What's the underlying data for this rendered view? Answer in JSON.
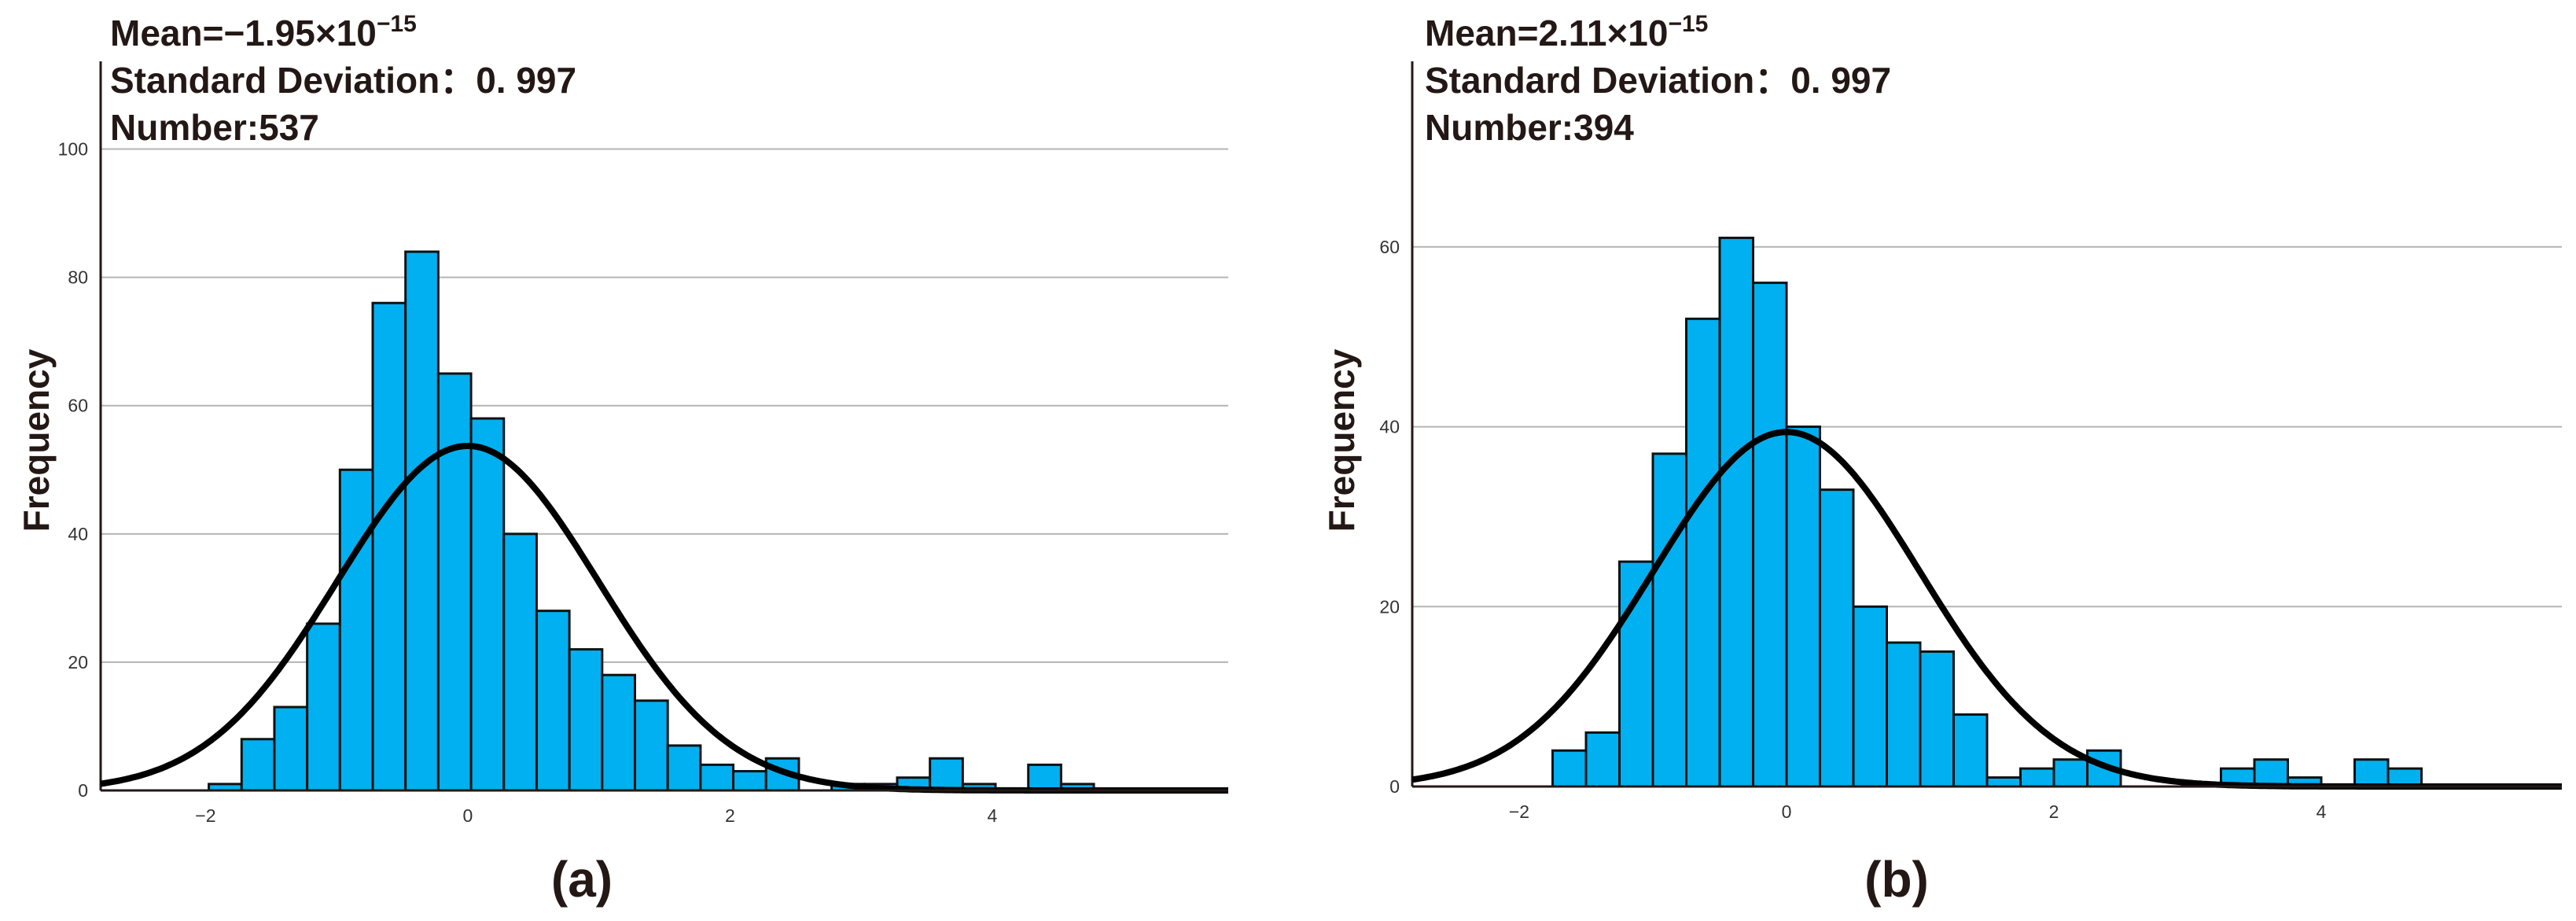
{
  "colors": {
    "bar": "#00B0F0",
    "curve": "#000000",
    "grid": "#B4B4B4"
  },
  "chart_data": [
    {
      "type": "bar",
      "panel_label": "(a)",
      "stats": {
        "mean_label": "Mean=−1.95×10",
        "mean_exponent": "−15",
        "sd_label": "Standard Deviation：0. 997",
        "number_label": "Number:537"
      },
      "ylabel": "Frequency",
      "xlabel": "",
      "xlim": [
        -2.8,
        5.8
      ],
      "ylim": [
        0,
        110
      ],
      "xticks": [
        -2,
        0,
        2,
        4
      ],
      "xtick_labels": [
        "−2",
        "0",
        "2",
        "4"
      ],
      "yticks": [
        0,
        20,
        40,
        60,
        80,
        100
      ],
      "ytick_labels": [
        "0",
        "20",
        "40",
        "60",
        "80",
        "100"
      ],
      "grid": true,
      "normal_curve": {
        "mean": 0,
        "sd": 0.997,
        "n": 537,
        "bin_width": 0.25
      },
      "bins": [
        {
          "x0": -1.975,
          "x1": -1.725,
          "count": 1
        },
        {
          "x0": -1.725,
          "x1": -1.475,
          "count": 8
        },
        {
          "x0": -1.475,
          "x1": -1.225,
          "count": 13
        },
        {
          "x0": -1.225,
          "x1": -0.975,
          "count": 26
        },
        {
          "x0": -0.975,
          "x1": -0.725,
          "count": 50
        },
        {
          "x0": -0.725,
          "x1": -0.475,
          "count": 76
        },
        {
          "x0": -0.475,
          "x1": -0.225,
          "count": 84
        },
        {
          "x0": -0.225,
          "x1": 0.025,
          "count": 65
        },
        {
          "x0": 0.025,
          "x1": 0.275,
          "count": 58
        },
        {
          "x0": 0.275,
          "x1": 0.525,
          "count": 40
        },
        {
          "x0": 0.525,
          "x1": 0.775,
          "count": 28
        },
        {
          "x0": 0.775,
          "x1": 1.025,
          "count": 22
        },
        {
          "x0": 1.025,
          "x1": 1.275,
          "count": 18
        },
        {
          "x0": 1.275,
          "x1": 1.525,
          "count": 14
        },
        {
          "x0": 1.525,
          "x1": 1.775,
          "count": 7
        },
        {
          "x0": 1.775,
          "x1": 2.025,
          "count": 4
        },
        {
          "x0": 2.025,
          "x1": 2.275,
          "count": 3
        },
        {
          "x0": 2.275,
          "x1": 2.525,
          "count": 5
        },
        {
          "x0": 2.775,
          "x1": 3.025,
          "count": 1
        },
        {
          "x0": 3.025,
          "x1": 3.275,
          "count": 1
        },
        {
          "x0": 3.275,
          "x1": 3.525,
          "count": 2
        },
        {
          "x0": 3.525,
          "x1": 3.775,
          "count": 5
        },
        {
          "x0": 3.775,
          "x1": 4.025,
          "count": 1
        },
        {
          "x0": 4.275,
          "x1": 4.525,
          "count": 4
        },
        {
          "x0": 4.525,
          "x1": 4.775,
          "count": 1
        }
      ]
    },
    {
      "type": "bar",
      "panel_label": "(b)",
      "stats": {
        "mean_label": "Mean=2.11×10",
        "mean_exponent": "−15",
        "sd_label": "Standard Deviation：0. 997",
        "number_label": "Number:394"
      },
      "ylabel": "Frequency",
      "xlabel": "",
      "xlim": [
        -2.8,
        5.8
      ],
      "ylim": [
        0,
        78
      ],
      "xticks": [
        -2,
        0,
        2,
        4
      ],
      "xtick_labels": [
        "−2",
        "0",
        "2",
        "4"
      ],
      "yticks": [
        0,
        20,
        40,
        60
      ],
      "ytick_labels": [
        "0",
        "20",
        "40",
        "60"
      ],
      "grid": true,
      "normal_curve": {
        "mean": 0,
        "sd": 0.997,
        "n": 394,
        "bin_width": 0.25
      },
      "bins": [
        {
          "x0": -1.75,
          "x1": -1.5,
          "count": 4
        },
        {
          "x0": -1.5,
          "x1": -1.25,
          "count": 6
        },
        {
          "x0": -1.25,
          "x1": -1.0,
          "count": 25
        },
        {
          "x0": -1.0,
          "x1": -0.75,
          "count": 37
        },
        {
          "x0": -0.75,
          "x1": -0.5,
          "count": 52
        },
        {
          "x0": -0.5,
          "x1": -0.25,
          "count": 61
        },
        {
          "x0": -0.25,
          "x1": 0.0,
          "count": 56
        },
        {
          "x0": 0.0,
          "x1": 0.25,
          "count": 40
        },
        {
          "x0": 0.25,
          "x1": 0.5,
          "count": 33
        },
        {
          "x0": 0.5,
          "x1": 0.75,
          "count": 20
        },
        {
          "x0": 0.75,
          "x1": 1.0,
          "count": 16
        },
        {
          "x0": 1.0,
          "x1": 1.25,
          "count": 15
        },
        {
          "x0": 1.25,
          "x1": 1.5,
          "count": 8
        },
        {
          "x0": 1.5,
          "x1": 1.75,
          "count": 1
        },
        {
          "x0": 1.75,
          "x1": 2.0,
          "count": 2
        },
        {
          "x0": 2.0,
          "x1": 2.25,
          "count": 3
        },
        {
          "x0": 2.25,
          "x1": 2.5,
          "count": 4
        },
        {
          "x0": 3.25,
          "x1": 3.5,
          "count": 2
        },
        {
          "x0": 3.5,
          "x1": 3.75,
          "count": 3
        },
        {
          "x0": 3.75,
          "x1": 4.0,
          "count": 1
        },
        {
          "x0": 4.25,
          "x1": 4.5,
          "count": 3
        },
        {
          "x0": 4.5,
          "x1": 4.75,
          "count": 2
        }
      ]
    }
  ]
}
